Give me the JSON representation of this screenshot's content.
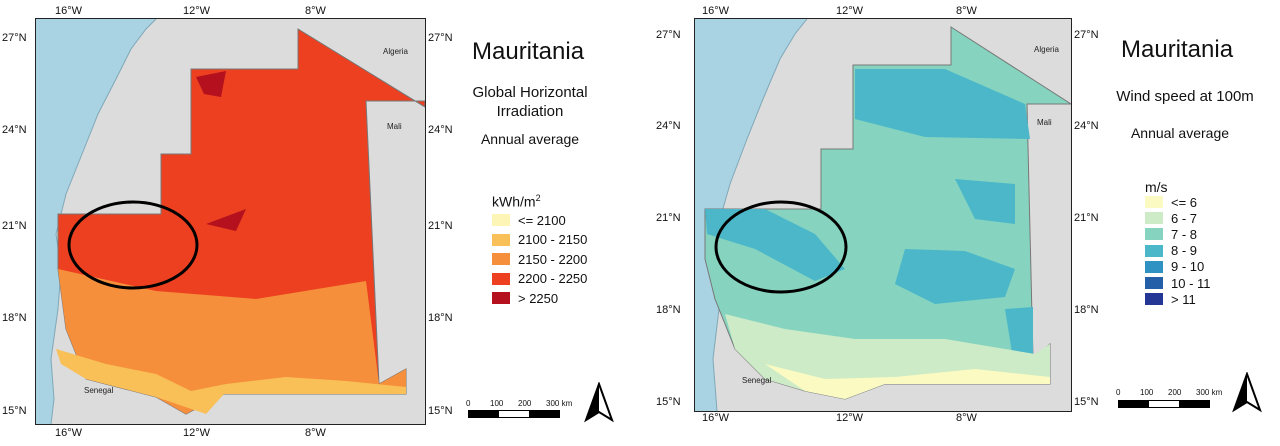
{
  "maps": [
    {
      "title": "Mauritania",
      "subtitle": "Global Horizontal Irradiation",
      "period": "Annual average",
      "legend_title_base": "kWh/m",
      "legend_title_sup": "2",
      "legend": [
        {
          "label": "<= 2100",
          "color": "#fdf5b6"
        },
        {
          "label": "2100 - 2150",
          "color": "#f8c057"
        },
        {
          "label": "2150 - 2200",
          "color": "#f68f3b"
        },
        {
          "label": "2200 - 2250",
          "color": "#ec4020"
        },
        {
          "label": "> 2250",
          "color": "#b4101e"
        }
      ],
      "top_ticks": [
        "16°W",
        "12°W",
        "8°W"
      ],
      "bottom_ticks": [
        "16°W",
        "12°W",
        "8°W"
      ],
      "left_ticks": [
        "27°N",
        "24°N",
        "21°N",
        "18°N",
        "15°N"
      ],
      "right_ticks": [
        "27°N",
        "24°N",
        "21°N",
        "18°N",
        "15°N"
      ],
      "labels": {
        "algeria": "Algeria",
        "mali": "Mali",
        "senegal": "Senegal"
      },
      "scale": [
        "0",
        "100",
        "200",
        "300 km"
      ]
    },
    {
      "title": "Mauritania",
      "subtitle": "Wind speed at 100m",
      "period": "Annual average",
      "legend_title_base": "m/s",
      "legend": [
        {
          "label": "<= 6",
          "color": "#fafac2"
        },
        {
          "label": "6 - 7",
          "color": "#cdebc6"
        },
        {
          "label": "7 - 8",
          "color": "#86d4bf"
        },
        {
          "label": "8 - 9",
          "color": "#4bb7c9"
        },
        {
          "label": "9 - 10",
          "color": "#2f92c2"
        },
        {
          "label": "10 - 11",
          "color": "#255fa8"
        },
        {
          "label": "> 11",
          "color": "#243796"
        }
      ],
      "top_ticks": [
        "16°W",
        "12°W",
        "8°W"
      ],
      "bottom_ticks": [
        "16°W",
        "12°W",
        "8°W"
      ],
      "left_ticks": [
        "27°N",
        "24°N",
        "21°N",
        "18°N",
        "15°N"
      ],
      "right_ticks": [
        "27°N",
        "24°N",
        "21°N",
        "18°N",
        "15°N"
      ],
      "labels": {
        "algeria": "Algeria",
        "mali": "Mali",
        "senegal": "Senegal"
      },
      "scale": [
        "0",
        "100",
        "200",
        "300 km"
      ]
    }
  ],
  "colors": {
    "ocean": "#a9d3e3",
    "land": "#dcdcdc",
    "border": "#777777",
    "highlight": "#000000"
  },
  "icons": {
    "north_arrow": "north-arrow-icon"
  }
}
